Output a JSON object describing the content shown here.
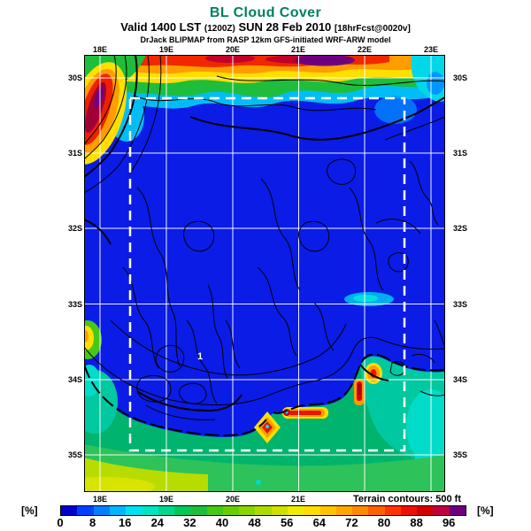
{
  "header": {
    "title": "BL Cloud Cover",
    "title_color": "#008060",
    "valid": {
      "prefix": "Valid 1400 LST",
      "init_time": "(1200Z)",
      "date": "SUN 28 Feb 2010",
      "forecast": "[18hrFcst@0020v]"
    },
    "model_line": "DrJack BLIPMAP from RASP 12km GFS-initiated WRF-ARW model"
  },
  "map": {
    "lon_labels": [
      "18E",
      "19E",
      "20E",
      "21E",
      "22E",
      "23E"
    ],
    "bottom_lon_labels": [
      "18E",
      "19E",
      "20E",
      "21E"
    ],
    "lat_labels": [
      "30S",
      "31S",
      "32S",
      "33S",
      "34S",
      "35S"
    ],
    "terrain_note": "Terrain contours: 500 ft",
    "inner_label": "1",
    "grid_color": "#FFFFFF",
    "domain_box_color": "#FFFFFF",
    "field_base_color": "#0A1CE6"
  },
  "colorbar": {
    "unit_label": "[%]",
    "ticks": [
      "0",
      "8",
      "16",
      "24",
      "32",
      "40",
      "48",
      "56",
      "64",
      "72",
      "80",
      "88",
      "96"
    ],
    "colors": [
      "#0000CC",
      "#0041FF",
      "#0082FF",
      "#00B6FF",
      "#00E1F0",
      "#00E6C3",
      "#00D78F",
      "#00C85A",
      "#1EBE3C",
      "#46C814",
      "#69CE00",
      "#8CD400",
      "#AFDA00",
      "#D2E000",
      "#F0EC00",
      "#FFDF00",
      "#FFC300",
      "#FFA700",
      "#FF8B00",
      "#FF6000",
      "#FF3500",
      "#F01000",
      "#D40000",
      "#C00040",
      "#6E0080"
    ]
  },
  "chart_data": {
    "type": "heatmap",
    "title": "BL Cloud Cover",
    "units": "percent cloud cover [%]",
    "x_axis": {
      "ticks": [
        "18E",
        "19E",
        "20E",
        "21E",
        "22E",
        "23E"
      ]
    },
    "y_axis": {
      "ticks": [
        "30S",
        "31S",
        "32S",
        "33S",
        "34S",
        "35S"
      ]
    },
    "colorbar": {
      "tick_values": [
        0,
        8,
        16,
        24,
        32,
        40,
        48,
        56,
        64,
        72,
        80,
        88,
        96
      ],
      "colors": [
        "#0000CC",
        "#0041FF",
        "#0082FF",
        "#00B6FF",
        "#00E1F0",
        "#00E6C3",
        "#00D78F",
        "#00C85A",
        "#1EBE3C",
        "#46C814",
        "#69CE00",
        "#8CD400",
        "#AFDA00",
        "#D2E000",
        "#F0EC00",
        "#FFDF00",
        "#FFC300",
        "#FFA700",
        "#FF8B00",
        "#FF6000",
        "#FF3500",
        "#F01000",
        "#D40000",
        "#C00040",
        "#6E0080"
      ]
    },
    "legend_position": "bottom",
    "grid": true,
    "overlays": [
      "white lat/lon grid every 1 degree",
      "white dashed inner domain box",
      "black terrain contours at 500 ft interval"
    ],
    "estimated_regions": [
      {
        "region": "northern band along ~30S from 18E to 23E",
        "cloud_cover_pct": "60-100, maximum (purple ~100) near 21.5E"
      },
      {
        "region": "northwest corner 18E, 30S-31.5S",
        "cloud_cover_pct": "70-100 diagonal streak"
      },
      {
        "region": "interior 31S-34.5S",
        "cloud_cover_pct": "0-8 (solid blue)"
      },
      {
        "region": "scattered patches below northern band and near 21.5E 33S",
        "cloud_cover_pct": "16-24 (cyan)"
      },
      {
        "region": "southern band 34.5S-35.5S",
        "cloud_cover_pct": "24-48 greens with 16-24 teal patches"
      },
      {
        "region": "coastal hotspots near 20E-20.5E and 21.7E around 34.8S",
        "cloud_cover_pct": "72-96 (red/orange spots)"
      },
      {
        "region": "west edge near 33.4S",
        "cloud_cover_pct": "48-64 small yellow patch"
      }
    ],
    "annotations": [
      "1",
      "Terrain contours: 500 ft"
    ]
  }
}
